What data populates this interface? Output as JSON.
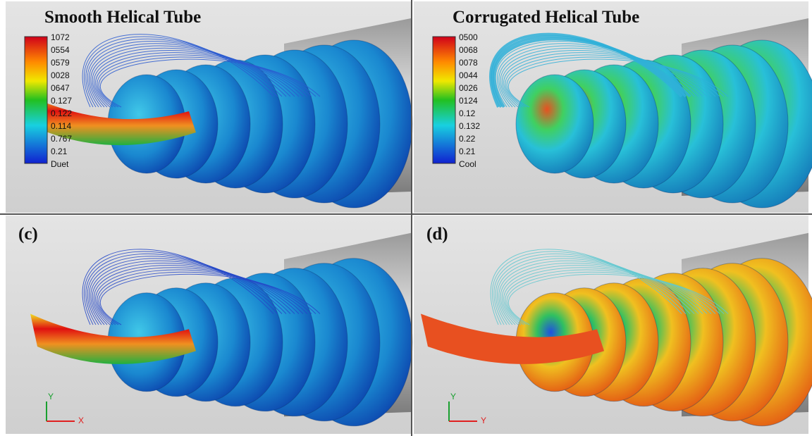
{
  "panels": [
    {
      "title": "Smooth Helical Tube",
      "legend": [
        "1072",
        "0554",
        "0579",
        "0028",
        "0647",
        "0.127",
        "0.122",
        "0.114",
        "0.767",
        "0.21",
        "Duet"
      ]
    },
    {
      "title": "Corrugated Helical Tube",
      "legend": [
        "0500",
        "0068",
        "0078",
        "0044",
        "0026",
        "0124",
        "0.12",
        "0.132",
        "0.22",
        "0.21",
        "Cool"
      ]
    },
    {
      "title": "(c)",
      "axes": [
        "Y",
        "X"
      ]
    },
    {
      "title": "(d)",
      "axes": [
        "Y",
        "Y"
      ]
    }
  ]
}
